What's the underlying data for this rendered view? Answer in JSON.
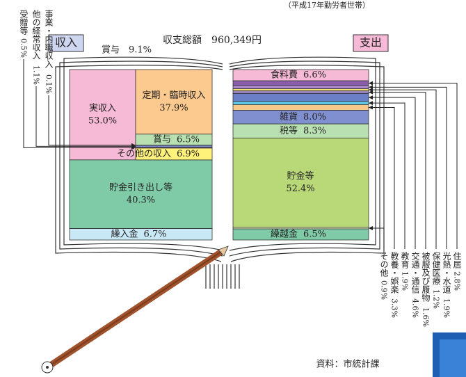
{
  "chart_data": {
    "type": "book",
    "title": "収支総額　960,349円",
    "subtitle": "（平成17年勤労者世帯）",
    "annotation": "賞与　9.1%",
    "source": "資料：市統計課",
    "income": {
      "label": "収入",
      "categories": [
        "実収入",
        "貯金引き出し等",
        "繰入金"
      ],
      "values": [
        53.0,
        40.3,
        6.7
      ],
      "value_labels": [
        "53.0%",
        "40.3%",
        "6.7%"
      ],
      "colors": [
        "#f6b9d6",
        "#7fcba8",
        "#c9e8f6"
      ]
    },
    "income_detail": {
      "categories": [
        "定期・臨時収入",
        "賞与",
        "事業・内職収入",
        "他の経常収入",
        "受贈等",
        "その他の収入"
      ],
      "values": [
        37.9,
        6.5,
        0.1,
        1.1,
        0.5,
        6.9
      ],
      "value_labels": [
        "37.9%",
        "6.5%",
        "0.1%",
        "1.1%",
        "0.5%",
        "6.9%"
      ],
      "colors": [
        "#fcc98f",
        "#b9e0b0",
        "#8a5ea8",
        "#7e8fd0",
        "#6c4c9a",
        "#fff27a"
      ]
    },
    "expense": {
      "label": "支出",
      "categories": [
        "食料費",
        "住居",
        "光熱・水道",
        "保健医療",
        "被服及び履物",
        "交通・通信",
        "教育",
        "教養・娯楽",
        "雑貨",
        "税等",
        "貯金等",
        "その他",
        "繰越金"
      ],
      "values": [
        6.6,
        2.8,
        1.9,
        1.2,
        1.6,
        4.6,
        1.9,
        3.3,
        8.0,
        8.3,
        52.4,
        0.9,
        6.5
      ],
      "value_labels": [
        "6.6%",
        "2.8%",
        "1.9%",
        "1.2%",
        "1.6%",
        "4.6%",
        "1.9%",
        "3.3%",
        "8.0%",
        "8.3%",
        "52.4%",
        "0.9%",
        "6.5%"
      ],
      "colors": [
        "#f6b9d6",
        "#8a5ea8",
        "#b08ad0",
        "#fff27a",
        "#9a7fc0",
        "#6a7fc8",
        "#5ec8e8",
        "#f8c888",
        "#7f8fd0",
        "#b9e0b0",
        "#b9d878",
        "#e8f0c0",
        "#7fcba8"
      ]
    }
  }
}
